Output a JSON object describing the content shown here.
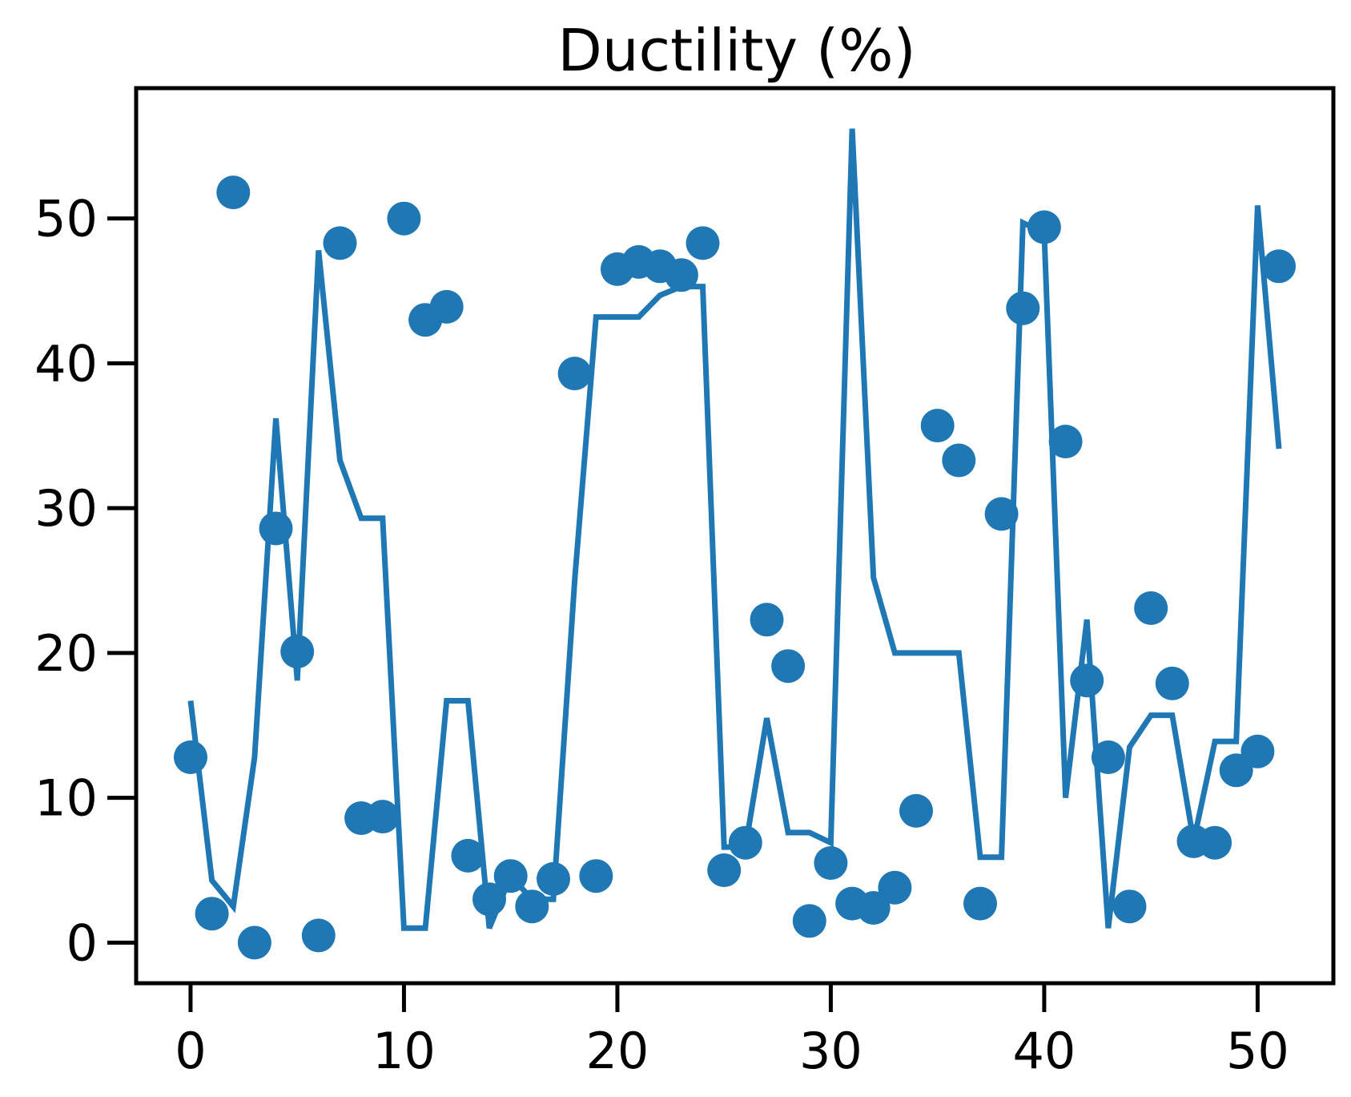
{
  "chart_data": {
    "type": "scatter",
    "title": "Ductility (%)",
    "xlabel": "",
    "ylabel": "",
    "xlim": [
      -2.55,
      53.55
    ],
    "ylim": [
      -2.8,
      59.0
    ],
    "xticks": [
      0,
      10,
      20,
      30,
      40,
      50
    ],
    "yticks": [
      0,
      10,
      20,
      30,
      40,
      50
    ],
    "grid": false,
    "legend": "none",
    "series": [
      {
        "kind": "scatter",
        "color": "#1f77b4",
        "x": [
          0,
          1,
          2,
          3,
          4,
          5,
          6,
          7,
          8,
          9,
          10,
          11,
          12,
          13,
          14,
          15,
          16,
          17,
          18,
          19,
          20,
          21,
          22,
          23,
          24,
          25,
          26,
          27,
          28,
          29,
          30,
          31,
          32,
          33,
          34,
          35,
          36,
          37,
          38,
          39,
          40,
          41,
          42,
          43,
          44,
          45,
          46,
          47,
          48,
          49,
          50,
          51
        ],
        "y": [
          12.8,
          2.0,
          51.8,
          0.0,
          28.6,
          20.1,
          0.5,
          48.3,
          8.6,
          8.7,
          50.0,
          43.0,
          43.9,
          6.0,
          3.0,
          4.6,
          2.5,
          4.4,
          39.3,
          4.6,
          46.5,
          47.0,
          46.7,
          46.1,
          48.3,
          5.0,
          6.9,
          22.3,
          19.1,
          1.5,
          5.5,
          2.7,
          2.4,
          3.8,
          9.1,
          35.7,
          33.3,
          2.7,
          29.6,
          43.8,
          49.4,
          34.6,
          18.1,
          12.8,
          2.5,
          23.1,
          17.9,
          7.0,
          6.9,
          11.9,
          13.2,
          46.7
        ]
      },
      {
        "kind": "line",
        "color": "#1f77b4",
        "x": [
          0,
          1,
          2,
          3,
          4,
          5,
          6,
          7,
          8,
          9,
          10,
          11,
          12,
          13,
          14,
          15,
          16,
          17,
          18,
          19,
          20,
          21,
          22,
          23,
          24,
          25,
          26,
          27,
          28,
          29,
          30,
          31,
          32,
          33,
          34,
          35,
          36,
          37,
          38,
          39,
          40,
          41,
          42,
          43,
          44,
          45,
          46,
          47,
          48,
          49,
          50,
          51
        ],
        "y": [
          16.7,
          4.3,
          2.5,
          12.8,
          36.2,
          18.1,
          47.8,
          33.3,
          29.3,
          29.3,
          1.0,
          1.0,
          16.7,
          16.7,
          1.0,
          4.6,
          3.0,
          3.0,
          25.0,
          43.2,
          43.2,
          43.2,
          44.7,
          45.3,
          45.3,
          6.6,
          6.6,
          15.5,
          7.6,
          7.6,
          6.9,
          56.2,
          25.2,
          20.0,
          20.0,
          20.0,
          20.0,
          5.9,
          5.9,
          49.7,
          49.0,
          10.0,
          22.3,
          1.0,
          13.5,
          15.7,
          15.7,
          7.0,
          13.9,
          13.9,
          50.9,
          34.1
        ]
      }
    ]
  }
}
